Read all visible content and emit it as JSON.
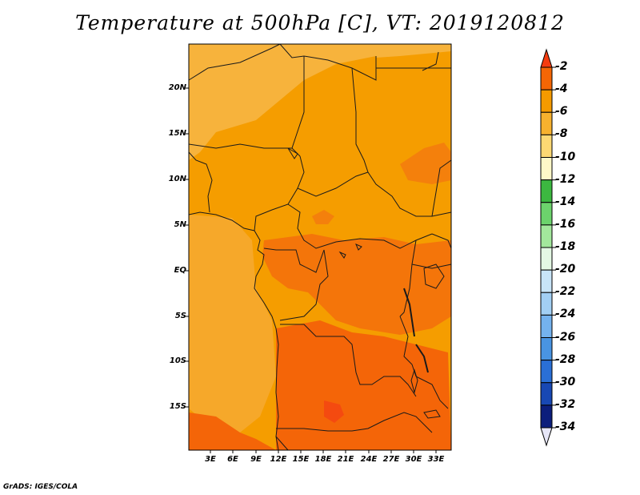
{
  "title": "Temperature at 500hPa [C], VT: 2019120812",
  "footer": "GrADS: IGES/COLA",
  "map": {
    "variable": "Temperature",
    "level": "500hPa",
    "units": "C",
    "valid_time": "2019120812",
    "lat_labels": [
      "20N",
      "15N",
      "10N",
      "5N",
      "EQ",
      "5S",
      "10S",
      "15S"
    ],
    "lon_labels": [
      "3E",
      "6E",
      "9E",
      "12E",
      "15E",
      "18E",
      "21E",
      "24E",
      "27E",
      "30E",
      "33E"
    ]
  },
  "colorbar": {
    "labels": [
      "-2",
      "-4",
      "-6",
      "-8",
      "-10",
      "-12",
      "-14",
      "-16",
      "-18",
      "-20",
      "-22",
      "-24",
      "-26",
      "-28",
      "-30",
      "-32",
      "-34"
    ],
    "colors": [
      "#f53c10",
      "#f56605",
      "#f59a00",
      "#f7b12e",
      "#fdd873",
      "#fff8c8",
      "#3cb840",
      "#6cd36c",
      "#a3e89c",
      "#e4f8e4",
      "#c8e4f8",
      "#a2cff4",
      "#74b2ee",
      "#4994e2",
      "#2a6fd6",
      "#1848b4",
      "#0c1e7c",
      "#e6e6f8"
    ]
  },
  "palette": {
    "warm_high": "#f46a0e",
    "warm_mid": "#f59d00",
    "warm_low": "#f9b542",
    "border": "#1a1a1a"
  }
}
